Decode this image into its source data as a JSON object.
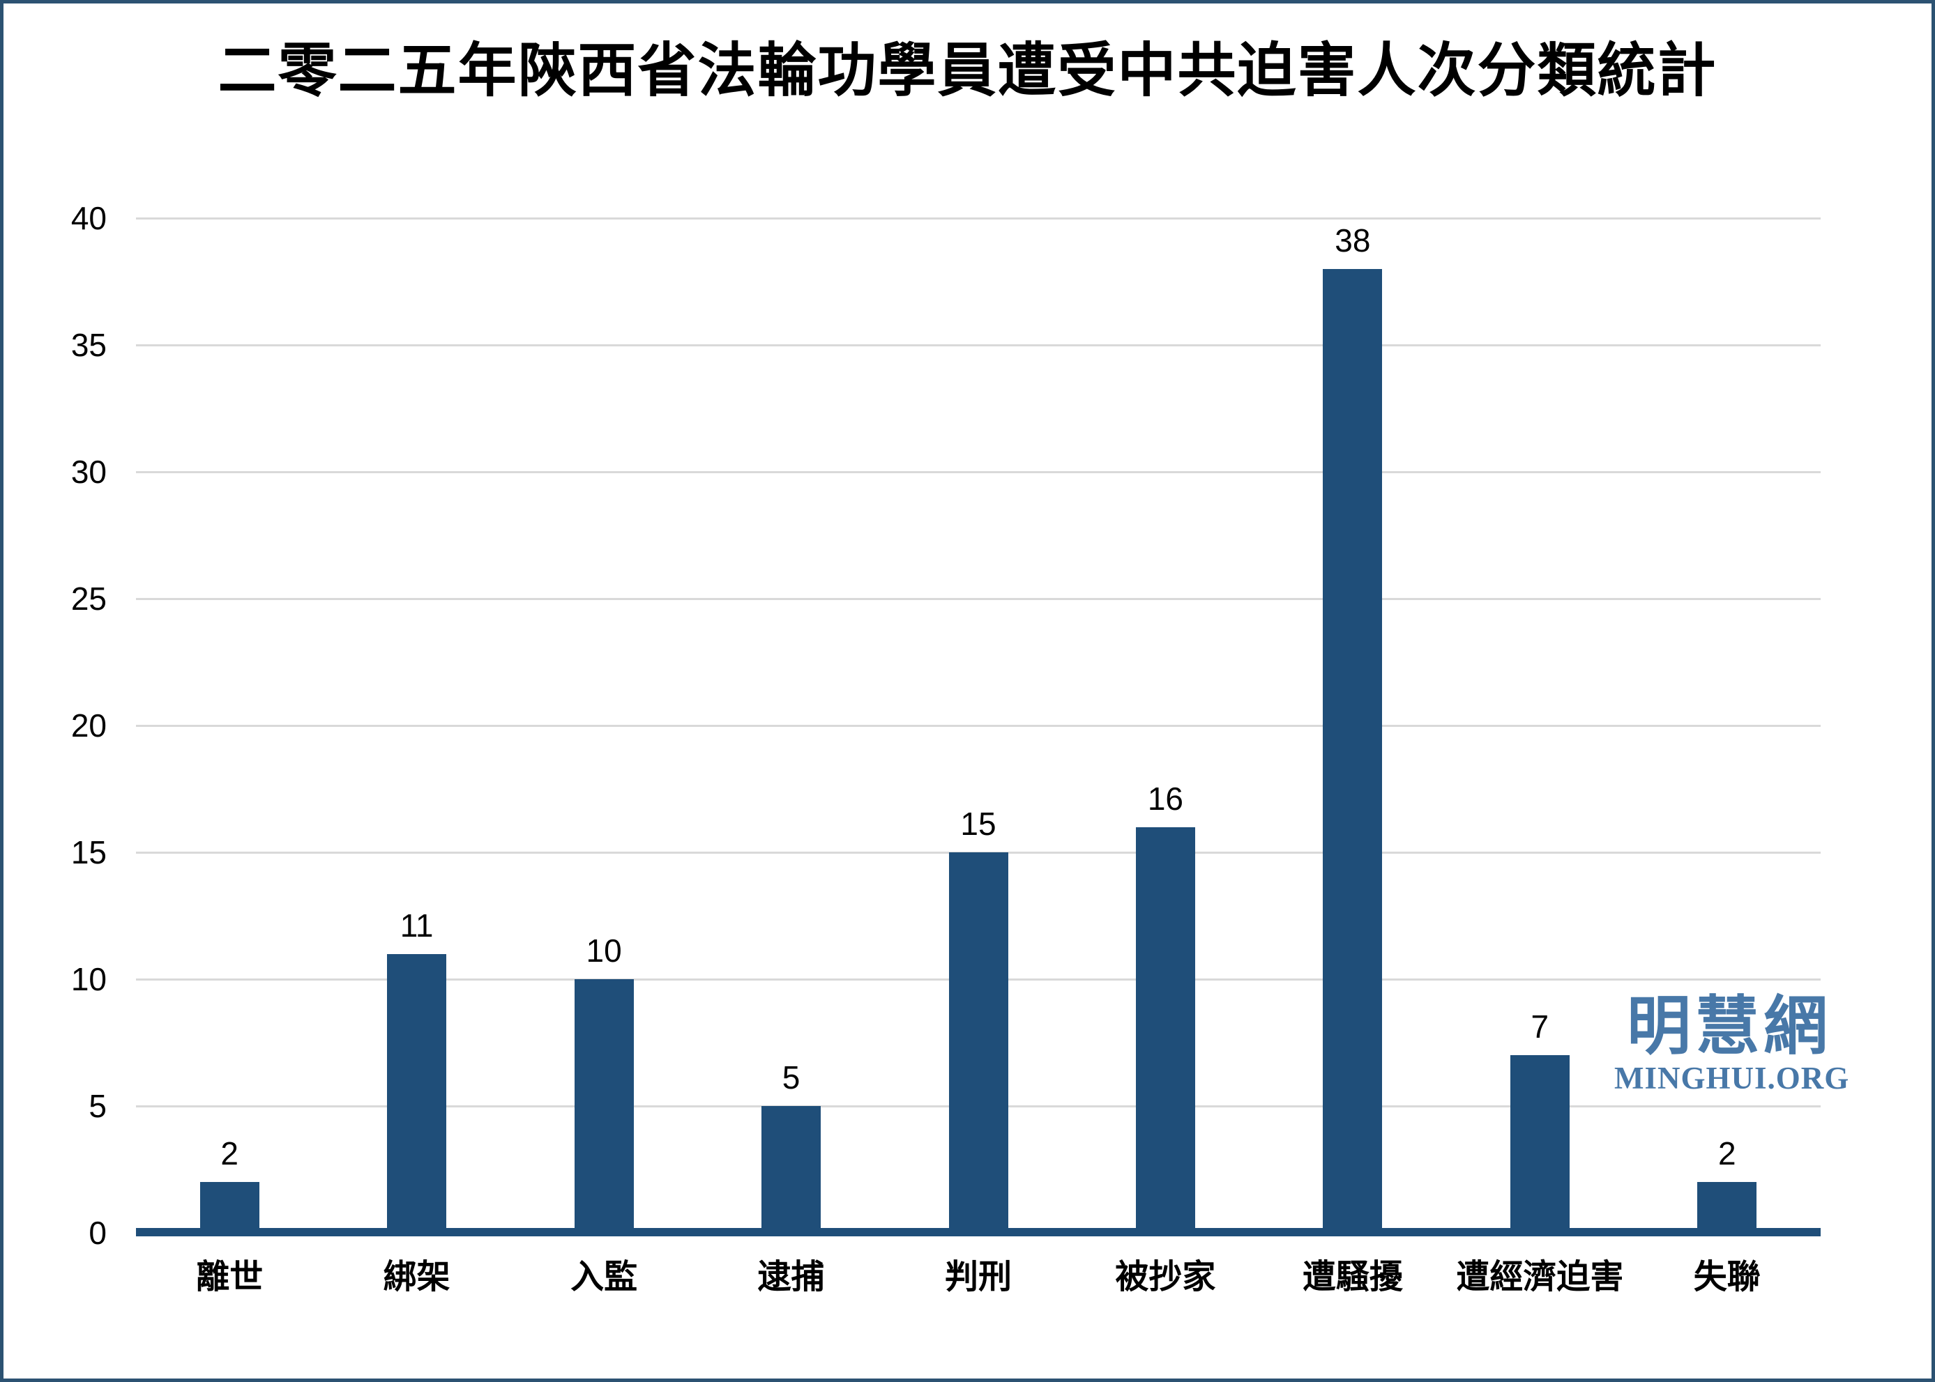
{
  "page": {
    "background": "#FFFFFF",
    "frame_color": "#2C5272"
  },
  "chart_data": {
    "type": "bar",
    "title": "二零二五年陝西省法輪功學員遭受中共迫害人次分類統計",
    "categories": [
      "離世",
      "綁架",
      "入監",
      "逮捕",
      "判刑",
      "被抄家",
      "遭騷擾",
      "遭經濟迫害",
      "失聯"
    ],
    "values": [
      2,
      11,
      10,
      5,
      15,
      16,
      38,
      7,
      2
    ],
    "xlabel": "",
    "ylabel": "",
    "ylim": [
      0,
      40
    ],
    "yticks": [
      0,
      5,
      10,
      15,
      20,
      25,
      30,
      35,
      40
    ],
    "grid": true,
    "legend": false,
    "data_labels": true,
    "bar_color": "#1F4E79",
    "axis_line_color": "#1F4E79",
    "gridline_color": "#D9D9D9",
    "label_color": "#000000"
  },
  "watermark": {
    "site_name_cjk": "明慧網",
    "site_name_latin": "MINGHUI.ORG",
    "color": "#4878A8"
  }
}
